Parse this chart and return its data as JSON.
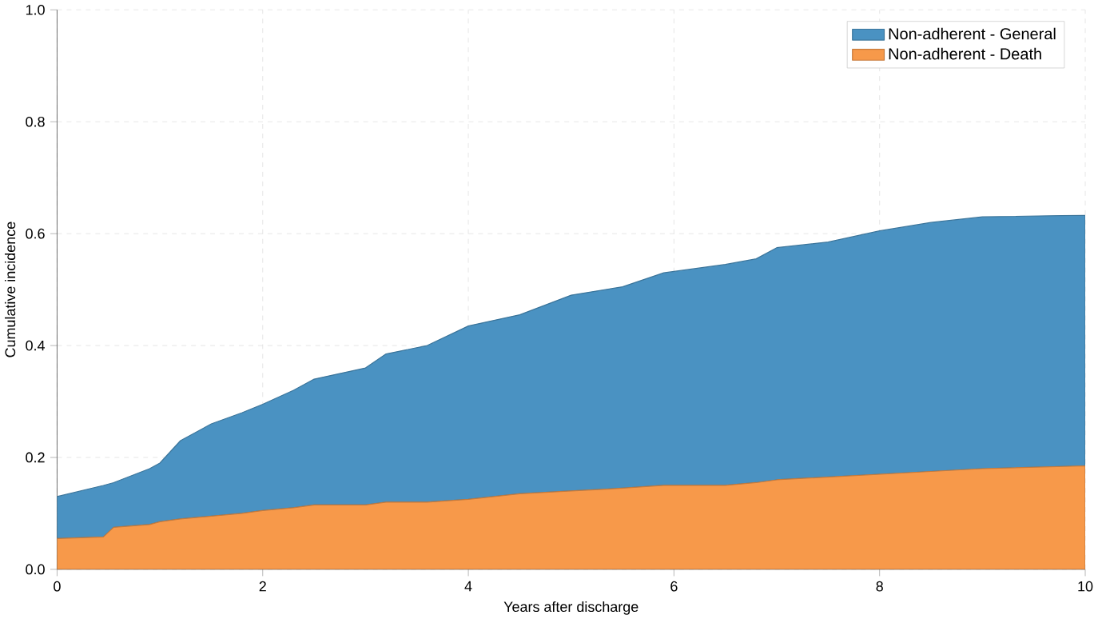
{
  "chart_data": {
    "type": "area",
    "stacked": true,
    "xlabel": "Years after discharge",
    "ylabel": "Cumulative incidence",
    "x": [
      0,
      0.45,
      0.55,
      0.9,
      1.0,
      1.2,
      1.5,
      1.8,
      2.0,
      2.3,
      2.5,
      3.0,
      3.2,
      3.6,
      4.0,
      4.5,
      5.0,
      5.5,
      5.9,
      6.5,
      6.8,
      7.0,
      7.5,
      8.0,
      8.5,
      9.0,
      10
    ],
    "series": [
      {
        "name": "Non-adherent - Death",
        "color": "#f7994a",
        "values": [
          0.055,
          0.058,
          0.075,
          0.08,
          0.085,
          0.09,
          0.095,
          0.1,
          0.105,
          0.11,
          0.115,
          0.115,
          0.12,
          0.12,
          0.125,
          0.135,
          0.14,
          0.145,
          0.15,
          0.15,
          0.155,
          0.16,
          0.165,
          0.17,
          0.175,
          0.18,
          0.185
        ]
      },
      {
        "name": "Non-adherent - General",
        "color": "#4a92c2",
        "values": [
          0.075,
          0.092,
          0.08,
          0.1,
          0.105,
          0.14,
          0.165,
          0.18,
          0.19,
          0.21,
          0.225,
          0.245,
          0.265,
          0.28,
          0.31,
          0.32,
          0.35,
          0.36,
          0.38,
          0.395,
          0.4,
          0.415,
          0.42,
          0.435,
          0.445,
          0.45,
          0.448
        ]
      }
    ],
    "xlim": [
      0,
      10
    ],
    "ylim": [
      0,
      1
    ],
    "xticks": [
      0,
      2,
      4,
      6,
      8,
      10
    ],
    "yticks": [
      {
        "value": 0,
        "label": "0.0"
      },
      {
        "value": 0.2,
        "label": "0.2"
      },
      {
        "value": 0.4,
        "label": "0.4"
      },
      {
        "value": 0.6,
        "label": "0.6"
      },
      {
        "value": 0.8,
        "label": "0.8"
      },
      {
        "value": 1,
        "label": "1.0"
      }
    ],
    "grid": true,
    "legend": "top right"
  }
}
